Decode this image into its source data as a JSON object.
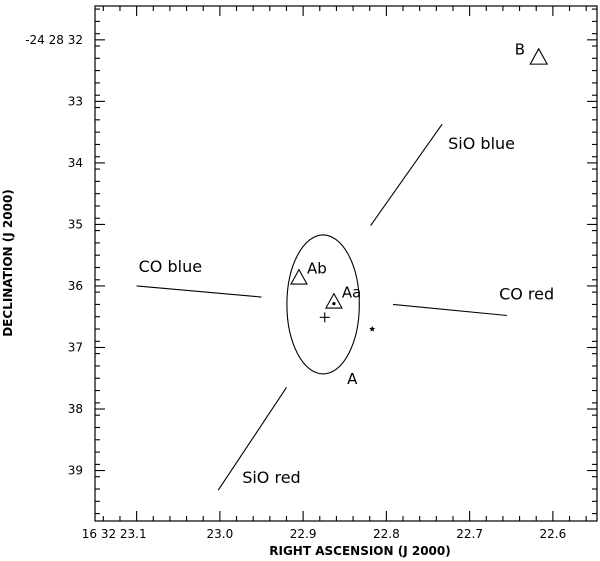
{
  "chart_data": {
    "type": "scatter",
    "xlabel": "RIGHT ASCENSION (J 2000)",
    "ylabel": "DECLINATION (J 2000)",
    "xlim": [
      23.15,
      22.547
    ],
    "ylim": [
      39.82,
      31.45
    ],
    "x_ticks": [
      {
        "value": 23.1,
        "label": "16 32 23.1"
      },
      {
        "value": 23.0,
        "label": "23.0"
      },
      {
        "value": 22.9,
        "label": "22.9"
      },
      {
        "value": 22.8,
        "label": "22.8"
      },
      {
        "value": 22.7,
        "label": "22.7"
      },
      {
        "value": 22.6,
        "label": "22.6"
      }
    ],
    "y_ticks": [
      {
        "value": 32,
        "label": "-24 28 32"
      },
      {
        "value": 33,
        "label": "33"
      },
      {
        "value": 34,
        "label": "34"
      },
      {
        "value": 35,
        "label": "35"
      },
      {
        "value": 36,
        "label": "36"
      },
      {
        "value": 37,
        "label": "37"
      },
      {
        "value": 38,
        "label": "38"
      },
      {
        "value": 39,
        "label": "39"
      }
    ],
    "sources": [
      {
        "label": "B",
        "marker": "triangle",
        "x": 22.617,
        "y": 32.3
      },
      {
        "label": "Ab",
        "marker": "triangle",
        "x": 22.905,
        "y": 35.88
      },
      {
        "label": "Aa",
        "marker": "triangle-dot",
        "x": 22.863,
        "y": 36.27
      },
      {
        "label": "",
        "marker": "plus",
        "x": 22.874,
        "y": 36.51
      },
      {
        "label": "",
        "marker": "star",
        "x": 22.817,
        "y": 36.7
      }
    ],
    "envelope": {
      "label": "A",
      "center_x": 22.876,
      "center_y": 36.3,
      "rx_ra": 0.0435,
      "ry_dec": 1.13
    },
    "outflows": [
      {
        "label": "SiO blue",
        "x1": 22.819,
        "y1": 35.02,
        "x2": 22.733,
        "y2": 33.37
      },
      {
        "label": "SiO red",
        "x1": 22.92,
        "y1": 37.65,
        "x2": 23.002,
        "y2": 39.32
      },
      {
        "label": "CO blue",
        "x1": 23.1,
        "y1": 36.0,
        "x2": 22.95,
        "y2": 36.18
      },
      {
        "label": "CO red",
        "x1": 22.792,
        "y1": 36.3,
        "x2": 22.655,
        "y2": 36.48
      }
    ]
  }
}
